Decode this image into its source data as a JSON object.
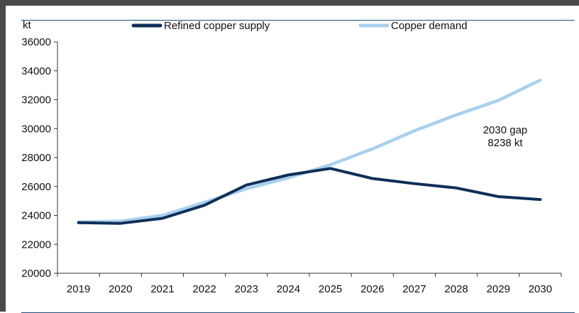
{
  "chart_data": {
    "type": "line",
    "ylabel": "kt",
    "categories": [
      "2019",
      "2020",
      "2021",
      "2022",
      "2023",
      "2024",
      "2025",
      "2026",
      "2027",
      "2028",
      "2029",
      "2030"
    ],
    "ylim": [
      20000,
      36000
    ],
    "yticks": [
      "20000",
      "22000",
      "24000",
      "26000",
      "28000",
      "30000",
      "32000",
      "34000",
      "36000"
    ],
    "legend_position": "top",
    "grid": false,
    "series": [
      {
        "name": "Refined copper supply",
        "color": "#0f2f57",
        "values": [
          23500,
          23450,
          23800,
          24700,
          26100,
          26800,
          27250,
          26550,
          26200,
          25900,
          25300,
          25100
        ]
      },
      {
        "name": "Copper demand",
        "color": "#a8d0ee",
        "values": [
          23550,
          23600,
          24000,
          24900,
          25850,
          26600,
          27500,
          28600,
          29850,
          30950,
          31950,
          33350
        ]
      }
    ],
    "annotations": [
      {
        "line1": "2030 gap",
        "line2": "8238 kt"
      }
    ]
  }
}
